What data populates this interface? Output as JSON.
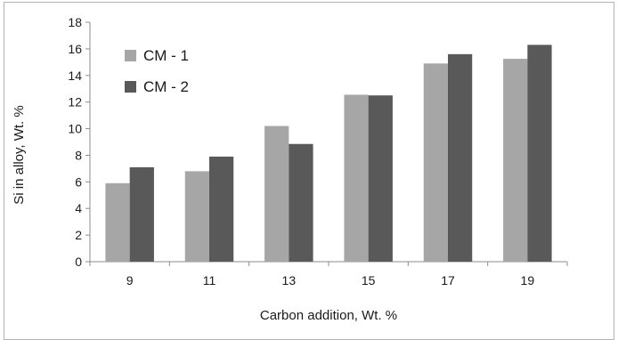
{
  "chart_data": {
    "type": "bar",
    "categories": [
      "9",
      "11",
      "13",
      "15",
      "17",
      "19"
    ],
    "series": [
      {
        "name": "CM - 1",
        "color": "#a6a6a6",
        "values": [
          5.9,
          6.8,
          10.2,
          12.55,
          14.9,
          15.25
        ]
      },
      {
        "name": "CM - 2",
        "color": "#595959",
        "values": [
          7.1,
          7.9,
          8.85,
          12.5,
          15.6,
          16.3
        ]
      }
    ],
    "title": "",
    "xlabel": "Carbon addition, Wt. %",
    "ylabel": "Si in alloy, Wt. %",
    "ylim": [
      0,
      18
    ],
    "yticks": [
      "0",
      "2",
      "4",
      "6",
      "8",
      "10",
      "12",
      "14",
      "16",
      "18"
    ],
    "grid": false,
    "legend": "top-left"
  }
}
